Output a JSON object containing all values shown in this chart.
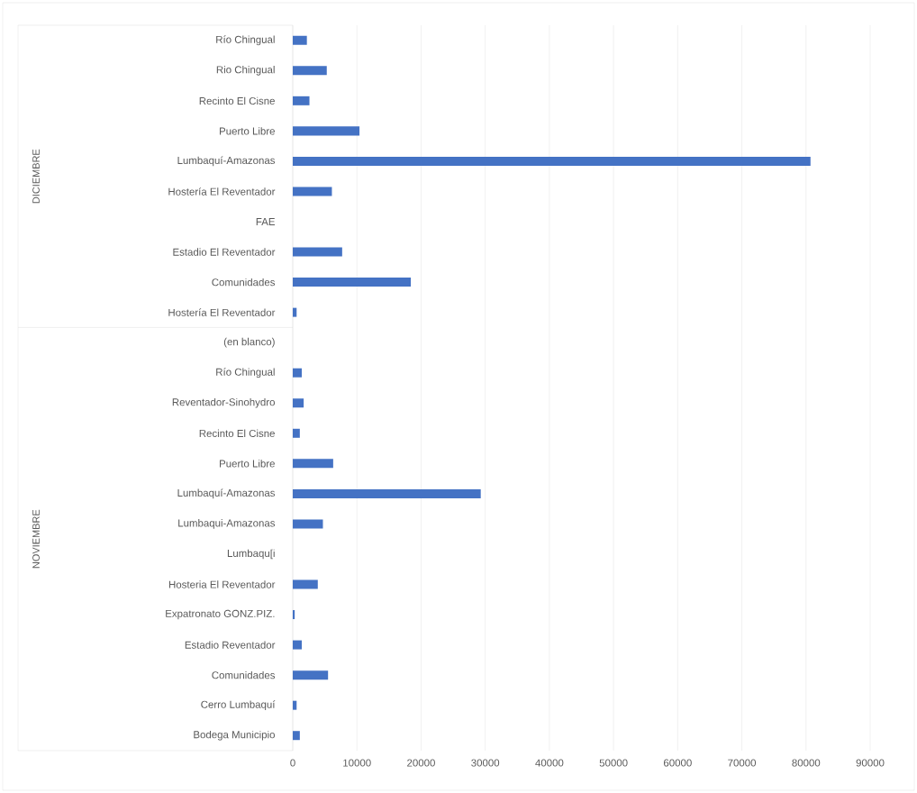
{
  "chart_data": {
    "type": "bar",
    "orientation": "horizontal",
    "categories": [
      "Río Chingual",
      "Rio Chingual",
      "Recinto El Cisne",
      "Puerto Libre",
      "Lumbaquí-Amazonas",
      "Hostería El Reventador",
      "FAE",
      "Estadio El Reventador",
      "Comunidades",
      "Hostería El Reventador",
      "(en blanco)",
      "Río Chingual",
      "Reventador-Sinohydro",
      "Recinto El Cisne",
      "Puerto Libre",
      "Lumbaquí-Amazonas",
      "Lumbaqui-Amazonas",
      "Lumbaqu[i",
      "Hosteria El Reventador",
      "Expatronato GONZ.PIZ.",
      "Estadio Reventador",
      "Comunidades",
      "Cerro Lumbaquí",
      "Bodega Municipio"
    ],
    "values": [
      2200,
      5300,
      2600,
      10400,
      80700,
      6100,
      null,
      7700,
      18400,
      600,
      null,
      1400,
      1700,
      1100,
      6300,
      29300,
      4700,
      null,
      3900,
      300,
      1400,
      5500,
      600,
      1100
    ],
    "color": "#4472c4",
    "xlim": [
      0,
      90000
    ],
    "xticks": [
      0,
      10000,
      20000,
      30000,
      40000,
      50000,
      60000,
      70000,
      80000,
      90000
    ],
    "grid": "x",
    "annotations": [
      "DICIEMBRE",
      "NOVIEMBRE"
    ]
  }
}
